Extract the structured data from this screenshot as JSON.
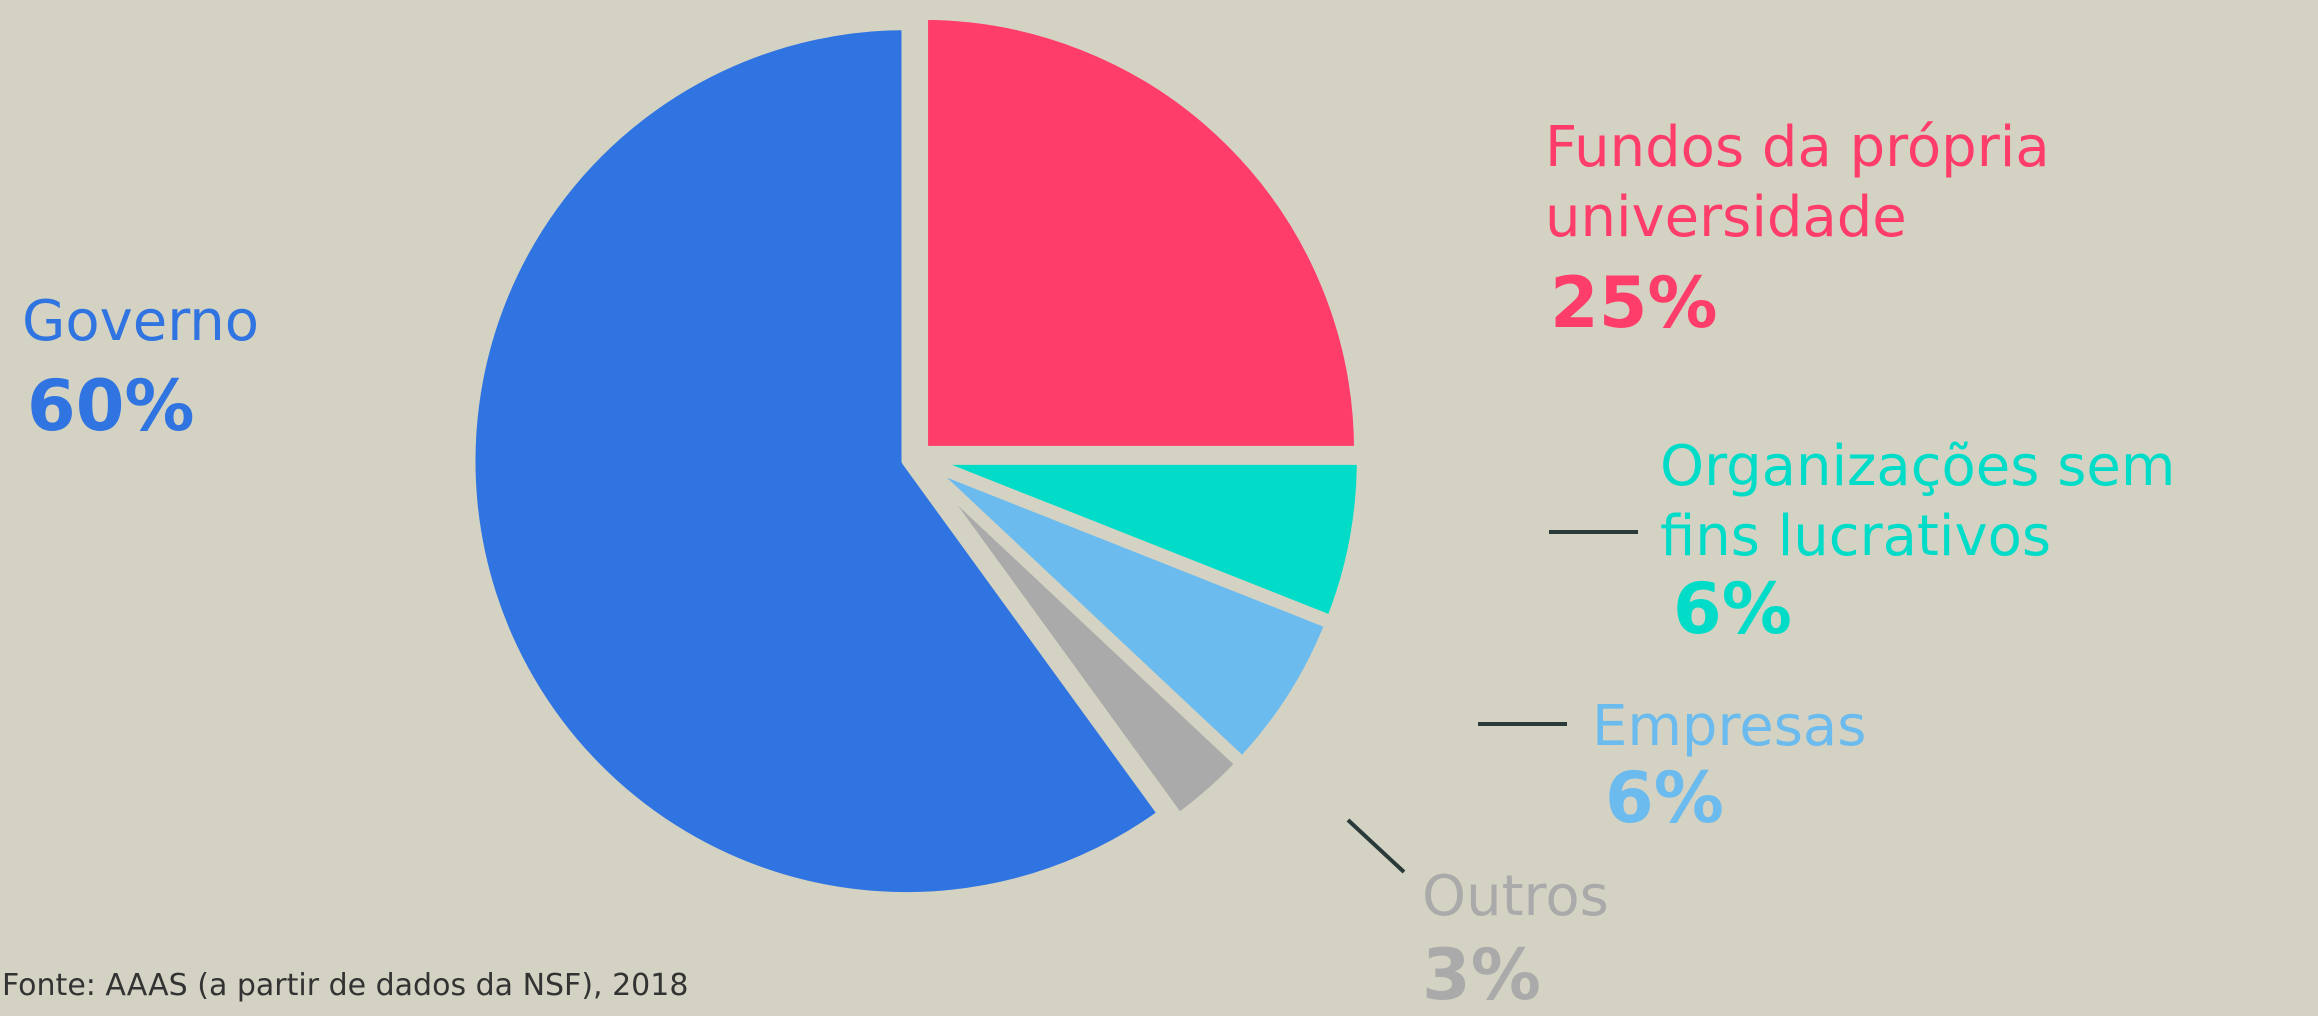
{
  "chart_data": {
    "type": "pie",
    "categories": [
      "Fundos da própria\nuniversidade",
      "Organizações sem\nfins lucrativos",
      "Empresas",
      "Outros",
      "Governo"
    ],
    "values": [
      25,
      6,
      6,
      3,
      60
    ],
    "value_labels": [
      "25%",
      "6%",
      "6%",
      "3%",
      "60%"
    ],
    "colors": [
      "#ff3d6b",
      "#00dcc8",
      "#6bbbee",
      "#aaaaaa",
      "#2f74e0"
    ],
    "source": "Fonte: AAAS (a partir de dados da NSF), 2018"
  }
}
